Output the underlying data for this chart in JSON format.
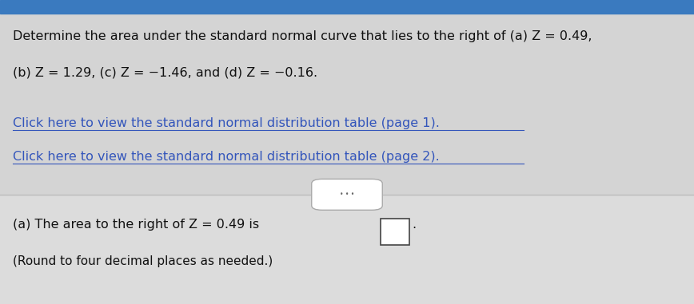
{
  "background_color": "#e8e8e8",
  "top_bar_color": "#3a7abf",
  "top_section_bg": "#d4d4d4",
  "bottom_section_bg": "#dcdcdc",
  "main_text_line1": "Determine the area under the standard normal curve that lies to the right of (a) Z = 0.49,",
  "main_text_line2": "(b) Z = 1.29, (c) Z = −1.46, and (d) Z = −0.16.",
  "link1": "Click here to view the standard normal distribution table (page 1).",
  "link2": "Click here to view the standard normal distribution table (page 2).",
  "answer_text_prefix": "(a) The area to the right of Z = 0.49 is ",
  "answer_text_suffix": ".",
  "round_text": "(Round to four decimal places as needed.)",
  "link_color": "#3355bb",
  "text_color": "#111111",
  "divider_color": "#bbbbbb",
  "dots_button_border": "#aaaaaa",
  "main_fontsize": 11.5,
  "link_fontsize": 11.5,
  "answer_fontsize": 11.5,
  "round_fontsize": 11.0
}
